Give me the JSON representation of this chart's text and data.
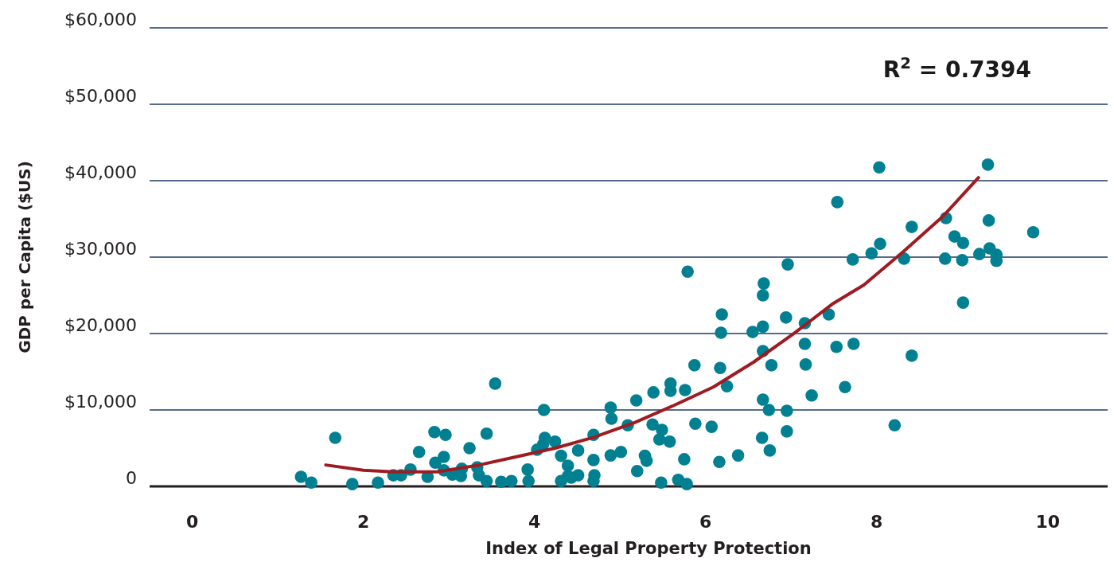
{
  "chart_data": {
    "type": "scatter",
    "xlabel": "Index of Legal Property Protection",
    "ylabel": "GDP per Capita ($US)",
    "annotations": [
      "R$^{2}$ = 0.7394"
    ],
    "xlim": [
      -0.5,
      10.7
    ],
    "ylim": [
      0,
      60000
    ],
    "xticks": [
      0,
      2,
      4,
      6,
      8,
      10
    ],
    "yticks": [
      {
        "value": 0,
        "label": "0"
      },
      {
        "value": 10000,
        "label": "$10,000"
      },
      {
        "value": 20000,
        "label": "$20,000"
      },
      {
        "value": 30000,
        "label": "$30,000"
      },
      {
        "value": 40000,
        "label": "$40,000"
      },
      {
        "value": 50000,
        "label": "$50,000"
      },
      {
        "value": 60000,
        "label": "$60,000"
      }
    ],
    "grid": "y",
    "series": [
      {
        "marker": "circle",
        "color": "#008091",
        "x": [
          1.27,
          1.39,
          1.67,
          1.87,
          2.17,
          2.35,
          2.44,
          2.55,
          2.65,
          2.75,
          2.83,
          2.84,
          2.94,
          2.96,
          2.94,
          3.04,
          3.14,
          3.15,
          3.24,
          3.33,
          3.35,
          3.44,
          3.44,
          3.54,
          3.61,
          3.73,
          3.92,
          3.93,
          4.03,
          4.11,
          4.12,
          4.1,
          4.24,
          4.31,
          4.31,
          4.39,
          4.39,
          4.43,
          4.51,
          4.51,
          4.69,
          4.69,
          4.7,
          4.69,
          4.89,
          4.9,
          4.89,
          5.01,
          5.09,
          5.19,
          5.2,
          5.29,
          5.31,
          5.39,
          5.38,
          5.46,
          5.49,
          5.48,
          5.59,
          5.59,
          5.58,
          5.68,
          5.76,
          5.75,
          5.78,
          5.79,
          5.87,
          5.88,
          6.07,
          6.16,
          6.17,
          6.18,
          6.19,
          6.25,
          6.38,
          6.55,
          6.66,
          6.67,
          6.67,
          6.67,
          6.67,
          6.68,
          6.74,
          6.75,
          6.77,
          6.94,
          6.95,
          6.95,
          6.96,
          7.16,
          7.16,
          7.17,
          7.24,
          7.44,
          7.53,
          7.54,
          7.63,
          7.72,
          7.73,
          7.94,
          8.03,
          8.04,
          8.21,
          8.32,
          8.41,
          8.41,
          8.8,
          8.81,
          8.91,
          9.01,
          9,
          9.01,
          9.2,
          9.3,
          9.31,
          9.32,
          9.4,
          9.4,
          9.83
        ],
        "values": [
          1250,
          500,
          6350,
          300,
          500,
          1450,
          1450,
          2200,
          4500,
          1250,
          7100,
          3100,
          3850,
          6750,
          2100,
          1550,
          1350,
          2300,
          5000,
          2500,
          1450,
          6900,
          700,
          13450,
          600,
          700,
          2200,
          700,
          4800,
          10000,
          6350,
          5500,
          5850,
          700,
          4000,
          2700,
          1350,
          1150,
          4700,
          1450,
          6750,
          3450,
          1450,
          700,
          10300,
          8850,
          4050,
          4500,
          8000,
          11250,
          2000,
          4000,
          3350,
          12300,
          8100,
          6150,
          7400,
          500,
          13450,
          12500,
          5850,
          850,
          12600,
          3550,
          300,
          28100,
          15850,
          8200,
          7800,
          3200,
          15500,
          20100,
          22500,
          13100,
          4050,
          20200,
          6350,
          11350,
          17700,
          20900,
          25000,
          26550,
          10000,
          4700,
          15850,
          22100,
          9900,
          7200,
          29050,
          21350,
          18650,
          15950,
          11900,
          22500,
          18250,
          37200,
          13000,
          29700,
          18650,
          30500,
          41750,
          31750,
          8000,
          29800,
          33950,
          17100,
          29800,
          35100,
          32700,
          31850,
          29600,
          24050,
          30400,
          42100,
          34800,
          31150,
          30300,
          29500,
          33250
        ]
      },
      {
        "type": "line",
        "color": "#9e1b22",
        "x": [
          1.56,
          2.0,
          2.35,
          2.86,
          3.31,
          3.78,
          4.24,
          4.7,
          5.17,
          5.63,
          6.09,
          6.56,
          7.02,
          7.48,
          7.85,
          8.31,
          8.78,
          9.19
        ],
        "values": [
          2800,
          2100,
          1900,
          1900,
          2700,
          3850,
          5000,
          6450,
          8350,
          10600,
          13000,
          16250,
          19900,
          23850,
          26350,
          30700,
          35400,
          40400
        ]
      }
    ]
  }
}
